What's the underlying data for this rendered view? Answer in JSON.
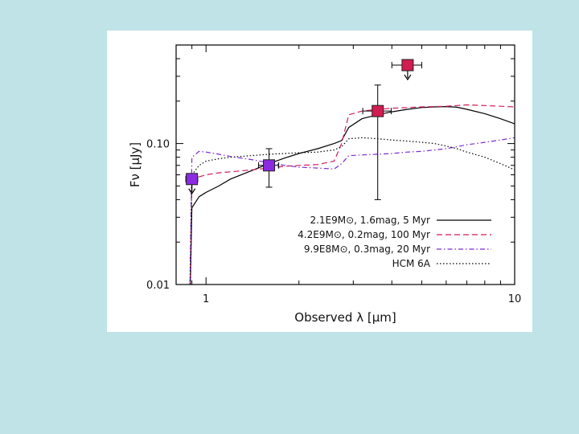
{
  "chart_data": {
    "type": "line",
    "xlabel": "Observed λ [μm]",
    "ylabel": "Fν [μJy]",
    "x_scale": "log",
    "y_scale": "log",
    "xlim": [
      0.8,
      10
    ],
    "ylim": [
      0.01,
      0.5
    ],
    "x_ticks": [
      {
        "value": 1,
        "label": "1"
      },
      {
        "value": 10,
        "label": "10"
      }
    ],
    "y_ticks": [
      {
        "value": 0.01,
        "label": "0.01"
      },
      {
        "value": 0.1,
        "label": "0.10"
      }
    ],
    "grid": false,
    "legend": {
      "placement": "bottom-right"
    },
    "series": [
      {
        "name": "2.1E9M⊙, 1.6mag, 5 Myr",
        "color": "#000000",
        "style": "solid",
        "x": [
          0.88,
          0.9,
          0.95,
          1.0,
          1.1,
          1.2,
          1.4,
          1.6,
          1.8,
          2.0,
          2.3,
          2.6,
          2.75,
          2.9,
          3.2,
          3.6,
          4.0,
          4.5,
          5.0,
          5.5,
          6.0,
          6.5,
          7.0,
          8.0,
          9.0,
          10.0
        ],
        "y": [
          0.003,
          0.035,
          0.042,
          0.045,
          0.05,
          0.056,
          0.064,
          0.072,
          0.079,
          0.085,
          0.092,
          0.1,
          0.105,
          0.13,
          0.15,
          0.16,
          0.168,
          0.175,
          0.18,
          0.182,
          0.183,
          0.181,
          0.175,
          0.163,
          0.15,
          0.138
        ]
      },
      {
        "name": "4.2E9M⊙, 0.2mag, 100 Myr",
        "color": "#d21c52",
        "style": "dashed",
        "x": [
          0.88,
          0.9,
          0.95,
          1.0,
          1.1,
          1.2,
          1.4,
          1.6,
          1.8,
          2.0,
          2.3,
          2.6,
          2.75,
          2.9,
          3.2,
          3.6,
          4.0,
          4.5,
          5.0,
          5.5,
          6.0,
          6.5,
          7.0,
          8.0,
          9.0,
          10.0
        ],
        "y": [
          0.003,
          0.055,
          0.058,
          0.06,
          0.062,
          0.063,
          0.065,
          0.067,
          0.069,
          0.07,
          0.071,
          0.075,
          0.1,
          0.16,
          0.17,
          0.175,
          0.178,
          0.18,
          0.182,
          0.183,
          0.184,
          0.186,
          0.188,
          0.186,
          0.184,
          0.182
        ]
      },
      {
        "name": "9.9E8M⊙, 0.3mag, 20 Myr",
        "color": "#7a2cd6",
        "style": "dash-dot",
        "x": [
          0.88,
          0.9,
          0.95,
          1.0,
          1.1,
          1.2,
          1.4,
          1.6,
          1.8,
          2.0,
          2.3,
          2.6,
          2.75,
          2.9,
          3.2,
          3.6,
          4.0,
          4.5,
          5.0,
          5.5,
          6.0,
          6.5,
          7.0,
          8.0,
          9.0,
          10.0
        ],
        "y": [
          0.003,
          0.08,
          0.088,
          0.087,
          0.084,
          0.081,
          0.077,
          0.073,
          0.07,
          0.068,
          0.067,
          0.066,
          0.072,
          0.082,
          0.083,
          0.084,
          0.085,
          0.087,
          0.088,
          0.09,
          0.092,
          0.095,
          0.098,
          0.102,
          0.106,
          0.11
        ]
      },
      {
        "name": "HCM 6A",
        "color": "#000000",
        "style": "dotted",
        "x": [
          0.88,
          0.9,
          0.95,
          1.0,
          1.1,
          1.2,
          1.4,
          1.6,
          1.8,
          2.0,
          2.3,
          2.6,
          2.75,
          2.9,
          3.2,
          3.6,
          4.0,
          4.5,
          5.0,
          5.5,
          6.0,
          6.5,
          7.0,
          8.0,
          9.0,
          10.0
        ],
        "y": [
          0.003,
          0.06,
          0.07,
          0.075,
          0.078,
          0.08,
          0.082,
          0.084,
          0.085,
          0.086,
          0.087,
          0.09,
          0.095,
          0.108,
          0.11,
          0.108,
          0.106,
          0.104,
          0.102,
          0.1,
          0.096,
          0.092,
          0.087,
          0.08,
          0.072,
          0.065
        ]
      }
    ],
    "data_points": [
      {
        "x": 0.9,
        "y": 0.056,
        "xerr": 0.04,
        "yerr_low": 0.0,
        "yerr_high": 0.0,
        "upper_limit": true,
        "color": "#8a2be2"
      },
      {
        "x": 1.6,
        "y": 0.07,
        "xerr": 0.12,
        "yerr_low": 0.021,
        "yerr_high": 0.022,
        "upper_limit": false,
        "color": "#8a2be2"
      },
      {
        "x": 3.6,
        "y": 0.17,
        "xerr": 0.38,
        "yerr_low": 0.13,
        "yerr_high": 0.09,
        "upper_limit": false,
        "color": "#d21c52"
      },
      {
        "x": 4.5,
        "y": 0.36,
        "xerr": 0.5,
        "yerr_low": 0.0,
        "yerr_high": 0.0,
        "upper_limit": true,
        "color": "#d21c52"
      }
    ]
  }
}
